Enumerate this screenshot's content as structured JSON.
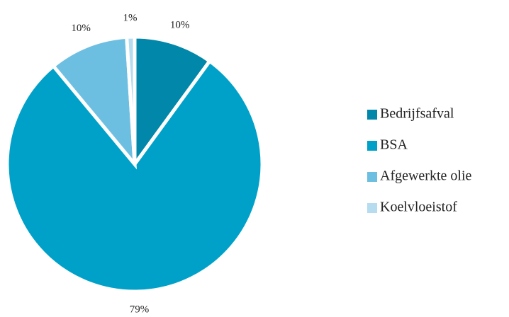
{
  "chart_data": {
    "type": "pie",
    "categories": [
      "Bedrijfsafval",
      "BSA",
      "Afgewerkte olie",
      "Koelvloeistof"
    ],
    "values": [
      10,
      79,
      10,
      1
    ],
    "value_labels": [
      "10%",
      "79%",
      "10%",
      "1%"
    ],
    "colors": [
      "#0087a9",
      "#00a1c9",
      "#6dbfe2",
      "#b5dcef"
    ],
    "legend": "right"
  }
}
